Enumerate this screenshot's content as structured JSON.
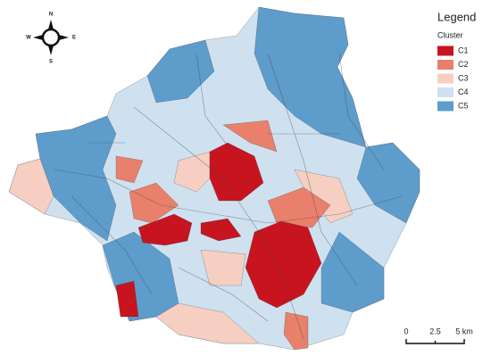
{
  "compass": {
    "north": "N",
    "south": "S",
    "west": "W",
    "east": "E"
  },
  "legend": {
    "title": "Legend",
    "subtitle": "Cluster",
    "items": [
      {
        "label": "C1",
        "color": "#c8141f"
      },
      {
        "label": "C2",
        "color": "#e8806b"
      },
      {
        "label": "C3",
        "color": "#f6cfc2"
      },
      {
        "label": "C4",
        "color": "#cfe1ef"
      },
      {
        "label": "C5",
        "color": "#5e9ccb"
      }
    ]
  },
  "scale_bar": {
    "labels": [
      "0",
      "2.5",
      "5 km"
    ]
  }
}
